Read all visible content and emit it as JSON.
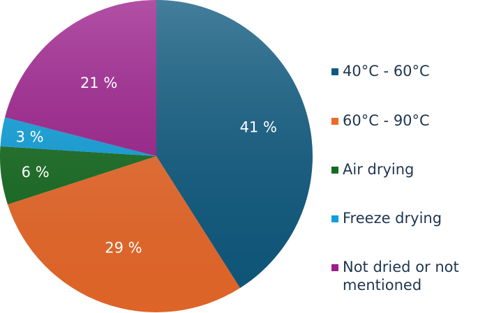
{
  "chart_data": {
    "type": "pie",
    "title": "",
    "categories": [
      "40°C - 60°C",
      "60°C - 90°C",
      "Air drying",
      "Freeze drying",
      "Not dried or not mentioned"
    ],
    "values": [
      41,
      29,
      6,
      3,
      21
    ],
    "labels": [
      "41 %",
      "29 %",
      "6 %",
      "3 %",
      "21 %"
    ],
    "colors": [
      "#0e5a80",
      "#ec6a2a",
      "#156b20",
      "#0ea0dc",
      "#9c1e8c"
    ],
    "start_angle": "top (12 o'clock), clockwise",
    "legend_position": "right"
  },
  "legend": {
    "items": [
      {
        "label": "40°C - 60°C",
        "color": "#0e5a80"
      },
      {
        "label": "60°C - 90°C",
        "color": "#ec6a2a"
      },
      {
        "label": "Air drying",
        "color": "#156b20"
      },
      {
        "label": "Freeze drying",
        "color": "#0ea0dc"
      },
      {
        "label": "Not dried or not mentioned",
        "color": "#9c1e8c"
      }
    ]
  }
}
